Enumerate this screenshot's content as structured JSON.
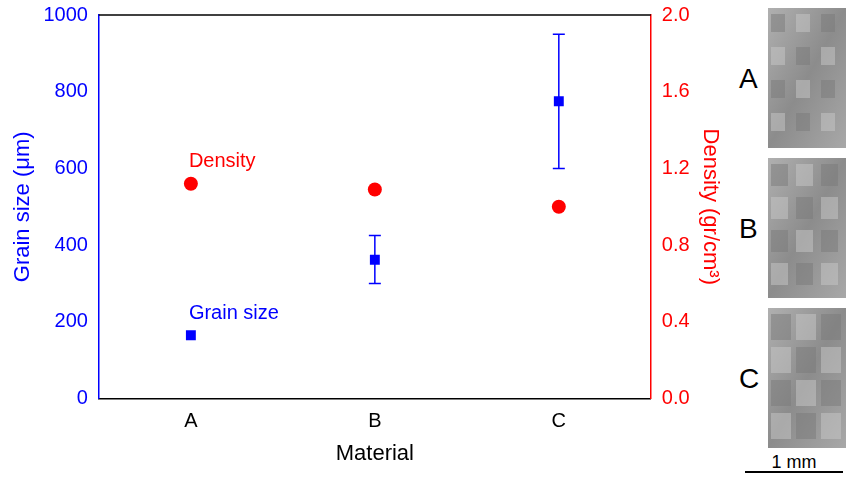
{
  "chart_data": {
    "type": "scatter",
    "categories": [
      "A",
      "B",
      "C"
    ],
    "x_label": "Material",
    "y_label": "Grain size (μm)",
    "y2_label": "Density (gr/cm³)",
    "ylim": [
      0,
      1000
    ],
    "yticks": [
      0,
      200,
      400,
      600,
      800,
      1000
    ],
    "y2lim": [
      0,
      2.0
    ],
    "y2ticks": [
      {
        "value": 0,
        "label": "0.0"
      },
      {
        "value": 0.4,
        "label": "0.4"
      },
      {
        "value": 0.8,
        "label": "0.8"
      },
      {
        "value": 1.2,
        "label": "1.2"
      },
      {
        "value": 1.6,
        "label": "1.6"
      },
      {
        "value": 2.0,
        "label": "2.0"
      }
    ],
    "grid": false,
    "series": [
      {
        "name": "Grain size",
        "color": "#0000ff",
        "marker": "square",
        "axis": "y",
        "values": [
          165,
          362,
          775
        ],
        "error_low": [
          null,
          300,
          600
        ],
        "error_high": [
          null,
          425,
          950
        ]
      },
      {
        "name": "Density",
        "color": "#ff0000",
        "marker": "circle",
        "axis": "y2",
        "values": [
          1.12,
          1.09,
          1.0
        ]
      }
    ],
    "annotations": [
      {
        "text": "Density",
        "series": "Density"
      },
      {
        "text": "Grain size",
        "series": "Grain size"
      }
    ]
  },
  "micrographs": {
    "labels": [
      "A",
      "B",
      "C"
    ],
    "scale_bar": "1 mm"
  }
}
